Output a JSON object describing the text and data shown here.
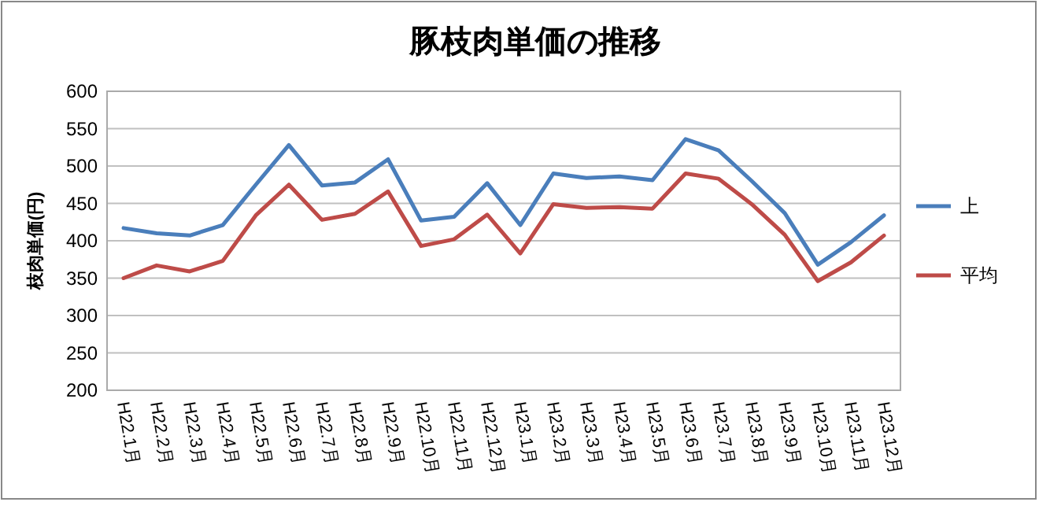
{
  "chart_data": {
    "type": "line",
    "title": "豚枝肉単価の推移",
    "ylabel": "枝肉単価(円)",
    "categories": [
      "H22.1月",
      "H22.2月",
      "H22.3月",
      "H22.4月",
      "H22.5月",
      "H22.6月",
      "H22.7月",
      "H22.8月",
      "H22.9月",
      "H22.10月",
      "H22.11月",
      "H22.12月",
      "H23.1月",
      "H23.2月",
      "H23.3月",
      "H23.4月",
      "H23.5月",
      "H23.6月",
      "H23.7月",
      "H23.8月",
      "H23.9月",
      "H23.10月",
      "H23.11月",
      "H23.12月"
    ],
    "series": [
      {
        "name": "上",
        "color": "#4a7ebb",
        "values": [
          417,
          410,
          407,
          421,
          475,
          528,
          474,
          478,
          509,
          427,
          432,
          477,
          421,
          490,
          484,
          486,
          481,
          536,
          521,
          480,
          437,
          368,
          398,
          434
        ]
      },
      {
        "name": "平均",
        "color": "#be4b48",
        "values": [
          350,
          367,
          359,
          373,
          434,
          475,
          428,
          436,
          466,
          393,
          402,
          435,
          383,
          449,
          444,
          445,
          443,
          490,
          483,
          449,
          408,
          346,
          371,
          407
        ]
      }
    ],
    "ylim": [
      200,
      600
    ],
    "yticks": [
      200,
      250,
      300,
      350,
      400,
      450,
      500,
      550,
      600
    ],
    "grid": "y",
    "legend": "right",
    "marker": "none",
    "line_style": "solid"
  }
}
